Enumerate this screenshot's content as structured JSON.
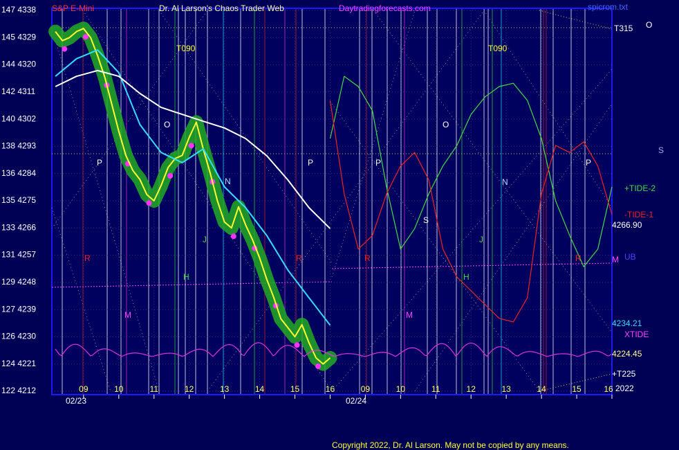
{
  "chart_data": {
    "type": "line",
    "ylim": [
      4212,
      4338
    ],
    "yticks": [
      {
        "value": 4338,
        "label": "147 4338"
      },
      {
        "value": 4329,
        "label": "145 4329"
      },
      {
        "value": 4320,
        "label": "144 4320"
      },
      {
        "value": 4311,
        "label": "142 4311"
      },
      {
        "value": 4302,
        "label": "140 4302"
      },
      {
        "value": 4293,
        "label": "138 4293"
      },
      {
        "value": 4284,
        "label": "136 4284"
      },
      {
        "value": 4275,
        "label": "135 4275"
      },
      {
        "value": 4266,
        "label": "133 4266"
      },
      {
        "value": 4257,
        "label": "131 4257"
      },
      {
        "value": 4248,
        "label": "129 4248"
      },
      {
        "value": 4239,
        "label": "127 4239"
      },
      {
        "value": 4230,
        "label": "126 4230"
      },
      {
        "value": 4221,
        "label": "124 4221"
      },
      {
        "value": 4212,
        "label": "122 4212"
      }
    ],
    "xlim": [
      8.1,
      24
    ],
    "xticks": [
      {
        "value": 9,
        "label": "09"
      },
      10,
      11,
      12,
      13,
      14,
      15,
      16,
      {
        "value": 17,
        "label": "09"
      },
      {
        "value": 18,
        "label": "10"
      },
      {
        "value": 19,
        "label": "11"
      },
      {
        "value": 20,
        "label": "12"
      },
      {
        "value": 21,
        "label": "13"
      },
      {
        "value": 22,
        "label": "14"
      },
      {
        "value": 23,
        "label": "15"
      },
      {
        "value": 24,
        "label": "16"
      }
    ],
    "grid": true,
    "series": [
      {
        "color": "#ffff33",
        "x": [
          8.2,
          8.4,
          8.6,
          8.8,
          9.0,
          9.2,
          9.4,
          9.6,
          9.8,
          10.0,
          10.2,
          10.4,
          10.6,
          10.8,
          11.0,
          11.2,
          11.4,
          11.6,
          11.8,
          12.0,
          12.2,
          12.4,
          12.6,
          12.8,
          13.0,
          13.2,
          13.4,
          13.6,
          13.8,
          14.0,
          14.2,
          14.4,
          14.6,
          14.8,
          15.0,
          15.2,
          15.4,
          15.6,
          15.8,
          16.0
        ],
        "values": [
          4331,
          4328,
          4329,
          4331,
          4332,
          4329,
          4323,
          4316,
          4307,
          4298,
          4290,
          4285,
          4282,
          4277,
          4275,
          4280,
          4286,
          4289,
          4290,
          4296,
          4301,
          4292,
          4284,
          4275,
          4268,
          4266,
          4273,
          4267,
          4262,
          4256,
          4249,
          4243,
          4236,
          4233,
          4230,
          4234,
          4228,
          4223,
          4221,
          4223
        ]
      },
      {
        "color": "#33ddff",
        "x": [
          8.2,
          8.8,
          9.4,
          10.0,
          10.6,
          11.2,
          11.8,
          12.4,
          13.0,
          13.6,
          14.2,
          14.8,
          15.4,
          16.0
        ],
        "values": [
          4316.2,
          4322.0,
          4324.9,
          4317.4,
          4300.2,
          4291.0,
          4287.6,
          4292.2,
          4279.6,
          4272.7,
          4263.5,
          4252.1,
          4242.9,
          4233.8
        ]
      },
      {
        "color": "#ffffff",
        "x": [
          8.2,
          8.8,
          9.4,
          10.0,
          10.6,
          11.2,
          11.8,
          12.4,
          13.0,
          13.6,
          14.2,
          14.8,
          15.4,
          16.0
        ],
        "values": [
          4312.8,
          4316.2,
          4318.1,
          4316.2,
          4310.5,
          4305.9,
          4303.6,
          4301.3,
          4299.1,
          4295.6,
          4289.9,
          4281.9,
          4272.7,
          4265.8
        ]
      },
      {
        "name": "+TIDE-2",
        "color": "#44dd44",
        "x": [
          16.0,
          16.4,
          16.8,
          17.2,
          17.6,
          18.0,
          18.4,
          18.8,
          19.2,
          19.6,
          20.0,
          20.4,
          20.8,
          21.2,
          21.6,
          22.0,
          22.4,
          22.8,
          23.2,
          23.6,
          24.0
        ],
        "values": [
          4295.6,
          4316.2,
          4312.8,
          4304.8,
          4279.6,
          4259.0,
          4265.8,
          4277.3,
          4286.5,
          4293.3,
          4303.6,
          4309.4,
          4312.8,
          4313.9,
          4308.2,
          4295.6,
          4275.0,
          4263.5,
          4253.2,
          4259.0,
          4279.6
        ]
      },
      {
        "name": "-TIDE-1",
        "color": "#ee2222",
        "x": [
          16.0,
          16.4,
          16.8,
          17.2,
          17.6,
          18.0,
          18.4,
          18.8,
          19.2,
          19.6,
          20.0,
          20.4,
          20.8,
          21.2,
          21.6,
          22.0,
          22.4,
          22.8,
          23.2,
          23.6,
          24.0
        ],
        "values": [
          4308.2,
          4277.3,
          4259.0,
          4263.5,
          4277.3,
          4286.5,
          4291.0,
          4281.9,
          4259.0,
          4249.8,
          4245.2,
          4240.6,
          4236.1,
          4234.9,
          4242.9,
          4277.3,
          4293.3,
          4291.0,
          4294.5,
          4286.5,
          4270.4
        ]
      }
    ],
    "annotations": [
      {
        "text": "S&P E-Mini",
        "color": "#ff3333"
      },
      {
        "text": "Dr. Al Larson's Chaos Trader Web",
        "color": "#ffffaa"
      },
      {
        "text": "Daytradingforecasts.com",
        "color": "#ff44ff"
      },
      {
        "text": "spicrom.txt",
        "color": "#4466ff"
      },
      {
        "text": "T315",
        "color": "#ffffff"
      },
      {
        "text": "O",
        "color": "#ffffff"
      },
      {
        "text": "S",
        "color": "#aaaaff"
      },
      {
        "text": "4266.90",
        "color": "#ffffff"
      },
      {
        "text": "UB",
        "color": "#4444ff"
      },
      {
        "text": "M",
        "color": "#ff44ff"
      },
      {
        "text": "4234.21",
        "color": "#33ddff"
      },
      {
        "text": "XTIDE",
        "color": "#ff44ff"
      },
      {
        "text": "4224.45",
        "color": "#ffff88"
      },
      {
        "text": "+T225",
        "color": "#ffffff"
      },
      {
        "text": "2022",
        "color": "#ffffff"
      },
      {
        "text": "T090",
        "color": "#ffff33"
      },
      {
        "text": "T090",
        "color": "#ffff33"
      },
      {
        "text": "02/23",
        "color": "#ffffff"
      },
      {
        "text": "02/24",
        "color": "#ffffff"
      },
      {
        "text": "Copyright 2022, Dr. Al Larson. May not be copied by any means.",
        "color": "#ffff33"
      },
      {
        "text": "P",
        "color": "#ffffff"
      },
      {
        "text": "O",
        "color": "#ffffff"
      },
      {
        "text": "N",
        "color": "#aaddff"
      },
      {
        "text": "J",
        "color": "#44dd44"
      },
      {
        "text": "H",
        "color": "#44dd44"
      },
      {
        "text": "M",
        "color": "#ff44ff"
      },
      {
        "text": "R",
        "color": "#ee2222"
      },
      {
        "text": "P",
        "color": "#ffffff"
      },
      {
        "text": "R",
        "color": "#ee2222"
      },
      {
        "text": "P",
        "color": "#ffffff"
      },
      {
        "text": "O",
        "color": "#ffffff"
      },
      {
        "text": "S",
        "color": "#ffffff"
      },
      {
        "text": "N",
        "color": "#aaddff"
      },
      {
        "text": "J",
        "color": "#44dd44"
      },
      {
        "text": "H",
        "color": "#44dd44"
      },
      {
        "text": "M",
        "color": "#ff44ff"
      },
      {
        "text": "R",
        "color": "#ee2222"
      },
      {
        "text": "P",
        "color": "#ffffff"
      },
      {
        "text": "R",
        "color": "#ee2222"
      }
    ]
  }
}
